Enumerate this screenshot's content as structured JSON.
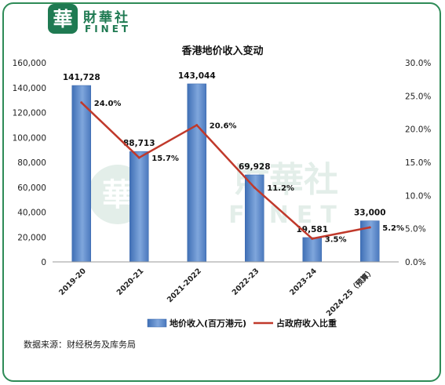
{
  "brand": {
    "name_cn": "財華社",
    "name_en": "FINET",
    "logo_char": "華"
  },
  "chart_data": {
    "type": "bar+line",
    "title": "香港地价收入变动",
    "categories": [
      "2019-20",
      "2020-21",
      "2021-2022",
      "2022-23",
      "2023-24",
      "2024-25（预算）"
    ],
    "series": [
      {
        "name": "地价收入(百万港元)",
        "type": "bar",
        "axis": "left",
        "values": [
          141728,
          88713,
          143044,
          69928,
          19581,
          33000
        ],
        "labels": [
          "141,728",
          "88,713",
          "143,044",
          "69,928",
          "19,581",
          "33,000"
        ],
        "color": "#4f7fc3"
      },
      {
        "name": "占政府收入比重",
        "type": "line",
        "axis": "right",
        "values": [
          24.0,
          15.7,
          20.6,
          11.2,
          3.5,
          5.2
        ],
        "labels": [
          "24.0%",
          "15.7%",
          "20.6%",
          "11.2%",
          "3.5%",
          "5.2%"
        ],
        "color": "#c0392b"
      }
    ],
    "y_left": {
      "lim": [
        0,
        160000
      ],
      "ticks": [
        "0",
        "20,000",
        "40,000",
        "60,000",
        "80,000",
        "100,000",
        "120,000",
        "140,000",
        "160,000"
      ]
    },
    "y_right": {
      "lim": [
        0,
        30
      ],
      "ticks": [
        "0.0%",
        "5.0%",
        "10.0%",
        "15.0%",
        "20.0%",
        "25.0%",
        "30.0%"
      ]
    },
    "grid": false,
    "legend_position": "bottom"
  },
  "source": "数据来源：财经税务及库务局"
}
